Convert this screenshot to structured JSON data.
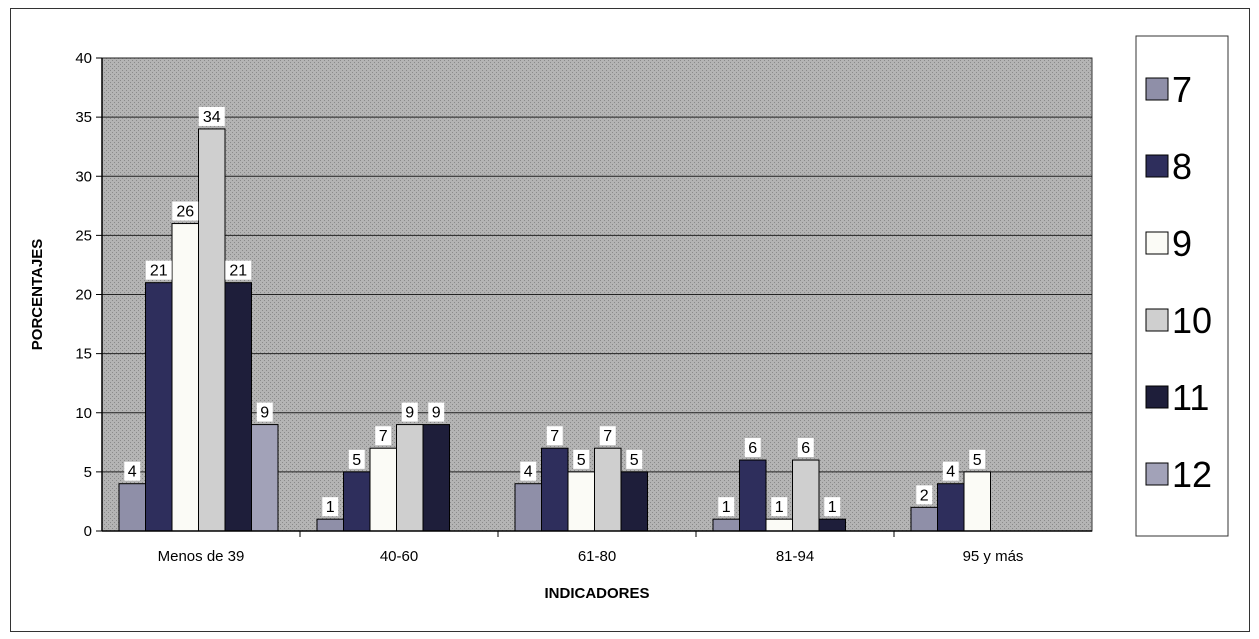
{
  "chart_data": {
    "type": "bar",
    "title": "",
    "xlabel": "INDICADORES",
    "ylabel": "PORCENTAJES",
    "ylim": [
      0,
      40
    ],
    "yticks": [
      0,
      5,
      10,
      15,
      20,
      25,
      30,
      35,
      40
    ],
    "grid": true,
    "legend": "right",
    "categories": [
      "Menos de 39",
      "40-60",
      "61-80",
      "81-94",
      "95 y más"
    ],
    "series": [
      {
        "name": "7",
        "color": "#8f8fa8",
        "values": [
          4,
          1,
          4,
          1,
          2
        ]
      },
      {
        "name": "8",
        "color": "#2e2e5c",
        "values": [
          21,
          5,
          7,
          6,
          4
        ]
      },
      {
        "name": "9",
        "color": "#fbfbf6",
        "values": [
          26,
          7,
          5,
          1,
          5
        ]
      },
      {
        "name": "10",
        "color": "#cfcfcf",
        "values": [
          34,
          9,
          7,
          6,
          null
        ]
      },
      {
        "name": "11",
        "color": "#1e1e3a",
        "values": [
          21,
          9,
          5,
          1,
          null
        ]
      },
      {
        "name": "12",
        "color": "#a2a2b8",
        "values": [
          9,
          null,
          null,
          null,
          null
        ]
      }
    ]
  }
}
